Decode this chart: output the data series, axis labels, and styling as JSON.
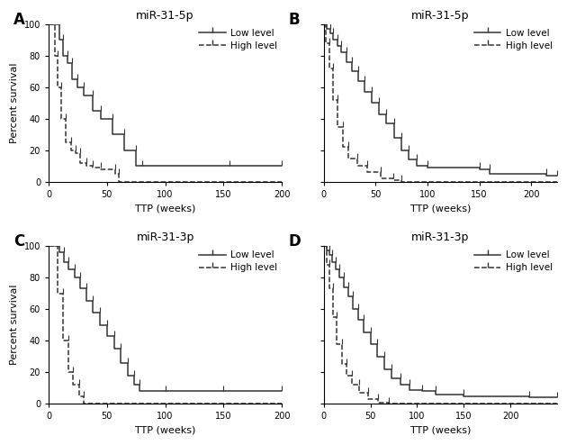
{
  "panels": [
    {
      "label": "A",
      "title": "miR-31-5p",
      "xlabel": "TTP (weeks)",
      "ylabel": "Percent survival",
      "xlim": [
        0,
        200
      ],
      "xticks": [
        0,
        50,
        100,
        150,
        200
      ],
      "ylim": [
        0,
        100
      ],
      "yticks": [
        0,
        20,
        40,
        60,
        80,
        100
      ],
      "low_x": [
        0,
        7,
        9,
        12,
        16,
        20,
        25,
        30,
        38,
        45,
        55,
        65,
        75,
        80,
        155,
        200
      ],
      "low_y": [
        100,
        100,
        90,
        80,
        75,
        65,
        60,
        55,
        45,
        40,
        30,
        20,
        10,
        10,
        10,
        10
      ],
      "high_x": [
        0,
        5,
        8,
        11,
        15,
        19,
        23,
        27,
        32,
        38,
        45,
        57,
        60
      ],
      "high_y": [
        100,
        80,
        60,
        40,
        25,
        20,
        18,
        12,
        10,
        9,
        8,
        5,
        0
      ]
    },
    {
      "label": "B",
      "title": "miR-31-5p",
      "xlabel": "TTP (weeks)",
      "ylabel": "Percent survival",
      "xlim": [
        0,
        225
      ],
      "xticks": [
        0,
        50,
        100,
        150,
        200
      ],
      "ylim": [
        0,
        100
      ],
      "yticks": [
        0,
        20,
        40,
        60,
        80,
        100
      ],
      "low_x": [
        0,
        3,
        6,
        9,
        13,
        17,
        22,
        27,
        33,
        39,
        46,
        53,
        60,
        68,
        75,
        82,
        90,
        100,
        150,
        160,
        215,
        225
      ],
      "low_y": [
        100,
        97,
        94,
        90,
        86,
        82,
        76,
        70,
        64,
        57,
        50,
        43,
        37,
        28,
        20,
        14,
        10,
        9,
        8,
        5,
        4,
        4
      ],
      "high_x": [
        0,
        2,
        5,
        9,
        13,
        18,
        24,
        32,
        42,
        55,
        67,
        75
      ],
      "high_y": [
        100,
        88,
        72,
        52,
        35,
        22,
        15,
        10,
        6,
        2,
        1,
        0
      ]
    },
    {
      "label": "C",
      "title": "miR-31-3p",
      "xlabel": "TTP (weeks)",
      "ylabel": "Percent survival",
      "xlim": [
        0,
        200
      ],
      "xticks": [
        0,
        50,
        100,
        150,
        200
      ],
      "ylim": [
        0,
        100
      ],
      "yticks": [
        0,
        20,
        40,
        60,
        80,
        100
      ],
      "low_x": [
        0,
        6,
        9,
        13,
        17,
        22,
        27,
        32,
        38,
        44,
        50,
        56,
        62,
        68,
        73,
        78,
        100,
        150,
        200
      ],
      "low_y": [
        100,
        100,
        96,
        90,
        85,
        80,
        73,
        65,
        58,
        50,
        43,
        35,
        26,
        18,
        12,
        8,
        8,
        8,
        8
      ],
      "high_x": [
        0,
        8,
        12,
        17,
        21,
        26,
        30
      ],
      "high_y": [
        100,
        70,
        40,
        20,
        12,
        5,
        0
      ]
    },
    {
      "label": "D",
      "title": "miR-31-3p",
      "xlabel": "TTP (weeks)",
      "ylabel": "Percent survival",
      "xlim": [
        0,
        250
      ],
      "xticks": [
        0,
        50,
        100,
        150,
        200
      ],
      "ylim": [
        0,
        100
      ],
      "yticks": [
        0,
        20,
        40,
        60,
        80,
        100
      ],
      "low_x": [
        0,
        3,
        6,
        9,
        13,
        17,
        21,
        26,
        31,
        37,
        43,
        50,
        57,
        65,
        73,
        82,
        92,
        105,
        120,
        150,
        220,
        250
      ],
      "low_y": [
        100,
        97,
        94,
        90,
        85,
        80,
        74,
        68,
        60,
        53,
        45,
        38,
        30,
        22,
        16,
        12,
        9,
        8,
        6,
        5,
        4,
        4
      ],
      "high_x": [
        0,
        3,
        6,
        10,
        14,
        19,
        24,
        30,
        38,
        47,
        58,
        70
      ],
      "high_y": [
        100,
        88,
        73,
        55,
        38,
        25,
        18,
        12,
        7,
        3,
        1,
        0
      ]
    }
  ],
  "line_color": "#333333",
  "low_linestyle": "-",
  "high_linestyle": "--",
  "low_marker": 3,
  "high_marker": 3,
  "markersize": 4,
  "linewidth": 1.1,
  "legend_fontsize": 7.5,
  "title_fontsize": 9,
  "axis_fontsize": 8,
  "tick_fontsize": 7,
  "label_fontsize": 12,
  "bg_color": "#ffffff"
}
